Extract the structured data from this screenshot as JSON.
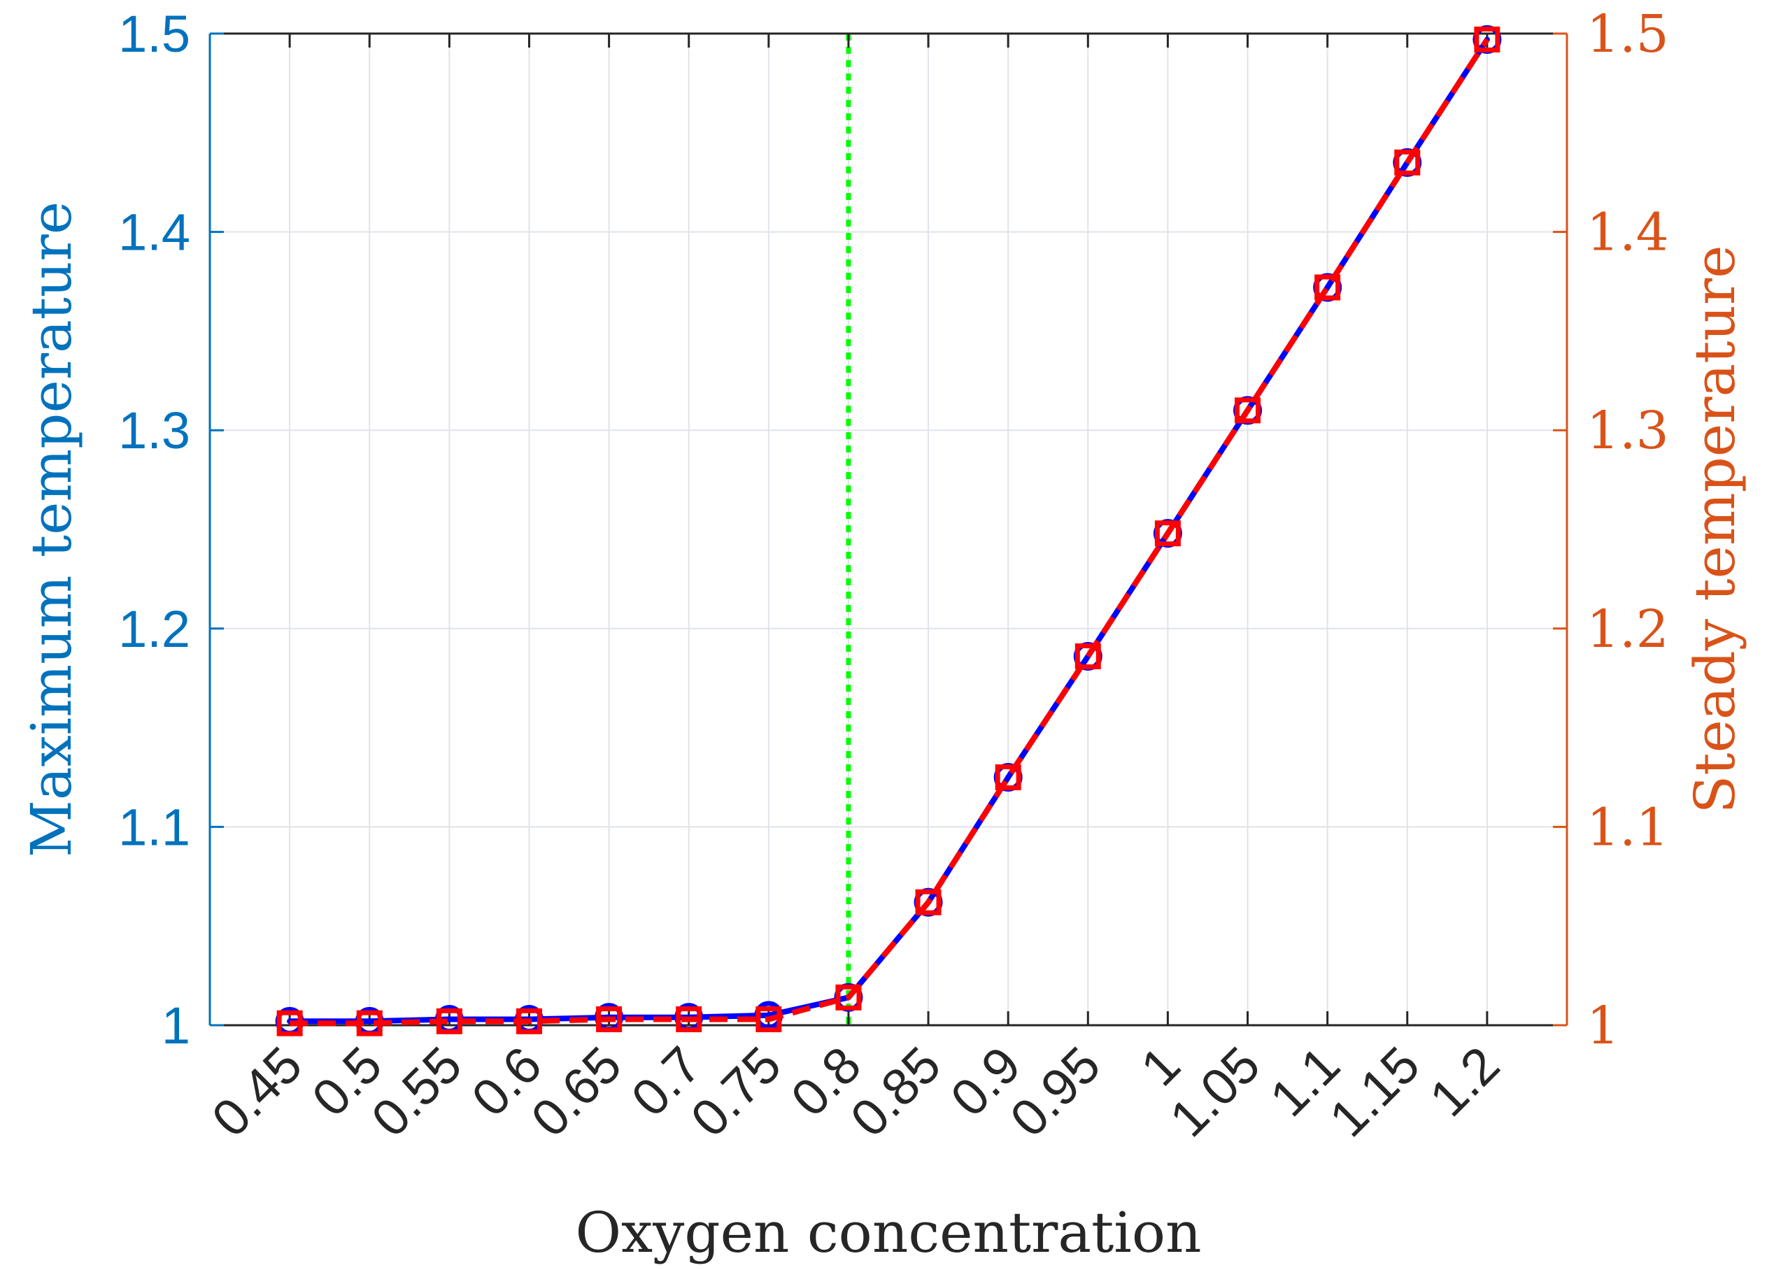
{
  "chart_data": {
    "type": "line",
    "xlabel": "Oxygen concentration",
    "ylabel_left": "Maximum temperature",
    "ylabel_right": "Steady temperature",
    "x": [
      0.45,
      0.5,
      0.55,
      0.6,
      0.65,
      0.7,
      0.75,
      0.8,
      0.85,
      0.9,
      0.95,
      1,
      1.05,
      1.1,
      1.15,
      1.2
    ],
    "x_tick_labels": [
      "0.45",
      "0.5",
      "0.55",
      "0.6",
      "0.65",
      "0.7",
      "0.75",
      "0.8",
      "0.85",
      "0.9",
      "0.95",
      "1",
      "1.05",
      "1.1",
      "1.15",
      "1.2"
    ],
    "xlim": [
      0.4,
      1.25
    ],
    "ylim_left": [
      1,
      1.5
    ],
    "ylim_right": [
      1,
      1.5
    ],
    "y_tick_labels_left": [
      "1",
      "1.1",
      "1.2",
      "1.3",
      "1.4",
      "1.5"
    ],
    "y_tick_labels_right": [
      "1",
      "1.1",
      "1.2",
      "1.3",
      "1.4",
      "1.5"
    ],
    "y_ticks": [
      1,
      1.1,
      1.2,
      1.3,
      1.4,
      1.5
    ],
    "grid": true,
    "vertical_line_x": 0.8,
    "series": [
      {
        "axis": "left",
        "color": "#0000FF",
        "line_style": "solid",
        "marker": "circle",
        "values": [
          1.002,
          1.002,
          1.003,
          1.003,
          1.004,
          1.004,
          1.005,
          1.014,
          1.062,
          1.125,
          1.186,
          1.248,
          1.31,
          1.372,
          1.435,
          1.497
        ]
      },
      {
        "axis": "right",
        "color": "#FF0000",
        "line_style": "dashed",
        "marker": "square",
        "values": [
          1.001,
          1.001,
          1.002,
          1.002,
          1.003,
          1.003,
          1.003,
          1.014,
          1.062,
          1.125,
          1.186,
          1.248,
          1.31,
          1.372,
          1.435,
          1.497
        ]
      }
    ],
    "colors": {
      "left_axis": "#0072BD",
      "right_axis": "#D95319",
      "axis_dark": "#262626",
      "grid": "#DFE3EA",
      "vertical_line": "#00FF00"
    }
  }
}
